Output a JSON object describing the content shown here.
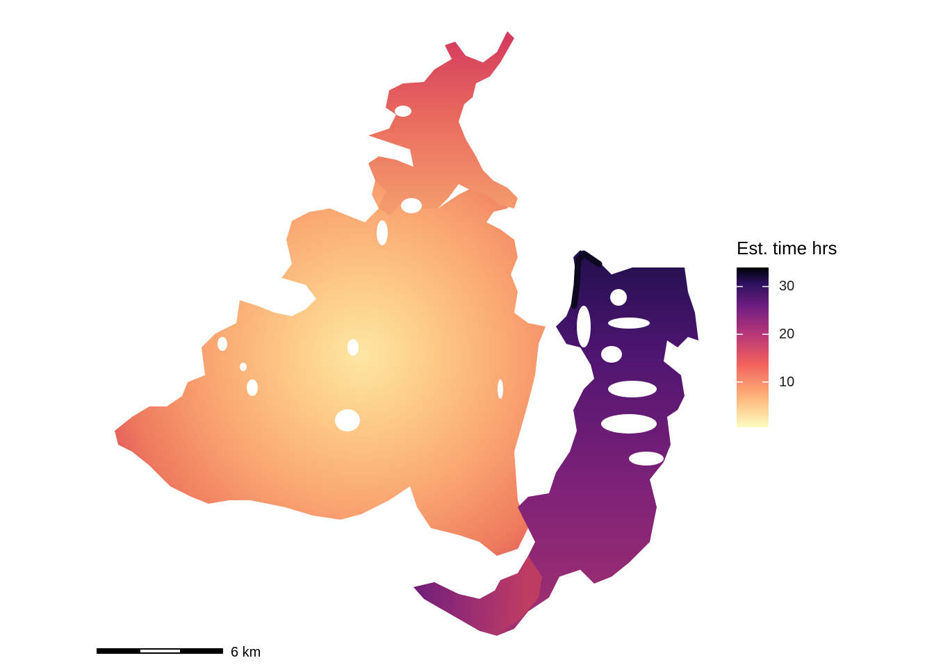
{
  "legend": {
    "title": "Est. time hrs",
    "ticks": [
      {
        "value": 30,
        "label": "30"
      },
      {
        "value": 20,
        "label": "20"
      },
      {
        "value": 10,
        "label": "10"
      }
    ],
    "range": [
      0.5,
      34
    ],
    "palette": [
      "#fcfdbf",
      "#feb078",
      "#f1605d",
      "#b73779",
      "#721f81",
      "#2c115f",
      "#000004"
    ]
  },
  "scale_bar": {
    "label": "6 km"
  }
}
